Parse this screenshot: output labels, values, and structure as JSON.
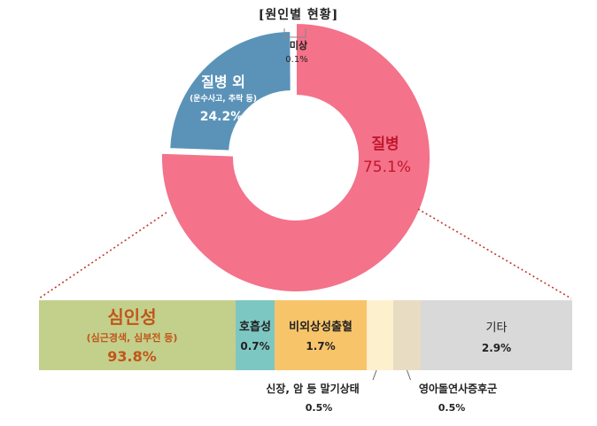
{
  "title": "[원인별 현황]",
  "chart_data": [
    {
      "type": "pie",
      "style": "donut",
      "slices": [
        {
          "name": "질병",
          "value": 75.1,
          "label": "75.1%",
          "color": "#f4728a"
        },
        {
          "name": "질병 외",
          "note": "(운수사고, 추락 등)",
          "value": 24.2,
          "label": "24.2%",
          "color": "#5b93b8"
        },
        {
          "name": "미상",
          "value": 0.1,
          "label": "0.1%",
          "color": "#b8c6d2"
        }
      ]
    },
    {
      "type": "bar",
      "style": "100% stacked horizontal",
      "parent_slice": "질병",
      "segments": [
        {
          "name": "심인성",
          "note": "(심근경색, 심부전 등)",
          "value": 93.8,
          "label": "93.8%",
          "color": "#c3d08c"
        },
        {
          "name": "호흡성",
          "value": 0.7,
          "label": "0.7%",
          "color": "#7dc7c2"
        },
        {
          "name": "비외상성출혈",
          "value": 1.7,
          "label": "1.7%",
          "color": "#f8c46a"
        },
        {
          "name": "신장, 암 등 말기상태",
          "value": 0.5,
          "label": "0.5%",
          "color": "#fdf0cd"
        },
        {
          "name": "영아돌연사증후군",
          "value": 0.5,
          "label": "0.5%",
          "color": "#e8dcc3"
        },
        {
          "name": "기타",
          "value": 2.9,
          "label": "2.9%",
          "color": "#d9d9d9"
        }
      ]
    }
  ],
  "colors": {
    "title": "#222222",
    "disease_label": "#c0182d",
    "cardiac_label": "#c0561a",
    "connector": "#c0392b",
    "white_text": "#ffffff"
  }
}
